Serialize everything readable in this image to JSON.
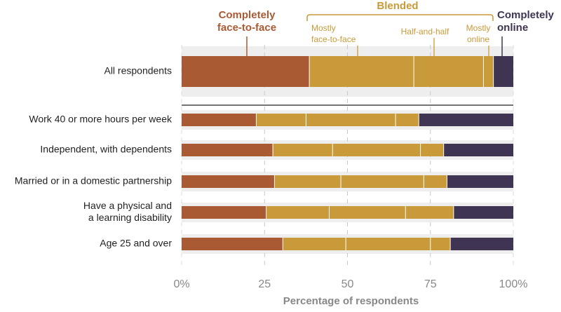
{
  "chart_data": {
    "type": "bar",
    "orientation": "horizontal",
    "stacked": true,
    "xlabel": "Percentage of respondents",
    "xlim": [
      0,
      100
    ],
    "ticks": [
      "0%",
      "25",
      "50",
      "75",
      "100%"
    ],
    "tick_values": [
      0,
      25,
      50,
      75,
      100
    ],
    "categories": [
      "All respondents",
      "Work 40 or more hours per week",
      "Independent, with dependents",
      "Married or in a domestic partnership",
      "Have a physical and a learning disability",
      "Age 25 and over"
    ],
    "category_lines": [
      [
        "All respondents"
      ],
      [
        "Work 40 or more hours per week"
      ],
      [
        "Independent, with dependents"
      ],
      [
        "Married or in a domestic partnership"
      ],
      [
        "Have a physical and",
        "a learning disability"
      ],
      [
        "Age 25 and over"
      ]
    ],
    "series": [
      {
        "name": "Completely face-to-face",
        "color": "#a95a33",
        "values": [
          38.5,
          22.5,
          27.5,
          28,
          25.5,
          30.5
        ]
      },
      {
        "name": "Mostly face-to-face",
        "color": "#c99a39",
        "values": [
          31.5,
          15,
          18,
          20,
          19,
          19
        ]
      },
      {
        "name": "Half-and-half",
        "color": "#c99a39",
        "values": [
          21,
          27,
          26.5,
          25,
          23,
          25.5
        ]
      },
      {
        "name": "Mostly online",
        "color": "#c99a39",
        "values": [
          3,
          7,
          7,
          7,
          14.5,
          6
        ]
      },
      {
        "name": "Completely online",
        "color": "#3f3553",
        "values": [
          6,
          28.5,
          21,
          20,
          18,
          19
        ]
      }
    ],
    "header": {
      "face_to_face": {
        "lines": [
          "Completely",
          "face-to-face"
        ],
        "color": "#a95a33"
      },
      "blended": {
        "label": "Blended",
        "color": "#c99a39"
      },
      "mostly_f2f": {
        "lines": [
          "Mostly",
          "face-to-face"
        ]
      },
      "half": {
        "lines": [
          "Half-and-half"
        ]
      },
      "mostly_online": {
        "lines": [
          "Mostly",
          "online"
        ]
      },
      "online": {
        "lines": [
          "Completely",
          "online"
        ],
        "color": "#3f3553"
      }
    },
    "background_band_color": "#eeeeee",
    "grid": true
  }
}
